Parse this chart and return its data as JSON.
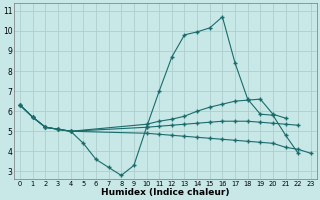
{
  "xlabel": "Humidex (Indice chaleur)",
  "xlim": [
    -0.5,
    23.5
  ],
  "ylim": [
    2.6,
    11.4
  ],
  "yticks": [
    3,
    4,
    5,
    6,
    7,
    8,
    9,
    10,
    11
  ],
  "xticks": [
    0,
    1,
    2,
    3,
    4,
    5,
    6,
    7,
    8,
    9,
    10,
    11,
    12,
    13,
    14,
    15,
    16,
    17,
    18,
    19,
    20,
    21,
    22,
    23
  ],
  "bg_color": "#c8e8e8",
  "grid_color": "#aecece",
  "line_color": "#1a6b6b",
  "series": [
    {
      "x": [
        0,
        1,
        2,
        3,
        4,
        5,
        6,
        7,
        8,
        9,
        10,
        11,
        12,
        13,
        14,
        15,
        16,
        17,
        18,
        19,
        20,
        21,
        22
      ],
      "y": [
        6.3,
        5.7,
        5.2,
        5.1,
        5.0,
        4.4,
        3.6,
        3.2,
        2.8,
        3.3,
        5.2,
        7.0,
        8.7,
        9.8,
        9.95,
        10.15,
        10.7,
        8.4,
        6.6,
        5.85,
        5.8,
        4.8,
        3.9
      ]
    },
    {
      "x": [
        0,
        1,
        2,
        3,
        4,
        10,
        11,
        12,
        13,
        14,
        15,
        16,
        17,
        18,
        19,
        20,
        21
      ],
      "y": [
        6.3,
        5.7,
        5.2,
        5.1,
        5.0,
        5.35,
        5.5,
        5.6,
        5.75,
        6.0,
        6.2,
        6.35,
        6.5,
        6.55,
        6.6,
        5.85,
        5.65
      ]
    },
    {
      "x": [
        0,
        1,
        2,
        3,
        4,
        10,
        11,
        12,
        13,
        14,
        15,
        16,
        17,
        18,
        19,
        20,
        21,
        22
      ],
      "y": [
        6.3,
        5.7,
        5.2,
        5.1,
        5.0,
        5.2,
        5.25,
        5.3,
        5.35,
        5.4,
        5.45,
        5.5,
        5.5,
        5.5,
        5.45,
        5.4,
        5.35,
        5.3
      ]
    },
    {
      "x": [
        0,
        1,
        2,
        3,
        4,
        10,
        11,
        12,
        13,
        14,
        15,
        16,
        17,
        18,
        19,
        20,
        21,
        22,
        23
      ],
      "y": [
        6.3,
        5.7,
        5.2,
        5.1,
        5.0,
        4.9,
        4.85,
        4.8,
        4.75,
        4.7,
        4.65,
        4.6,
        4.55,
        4.5,
        4.45,
        4.4,
        4.2,
        4.1,
        3.9
      ]
    }
  ]
}
